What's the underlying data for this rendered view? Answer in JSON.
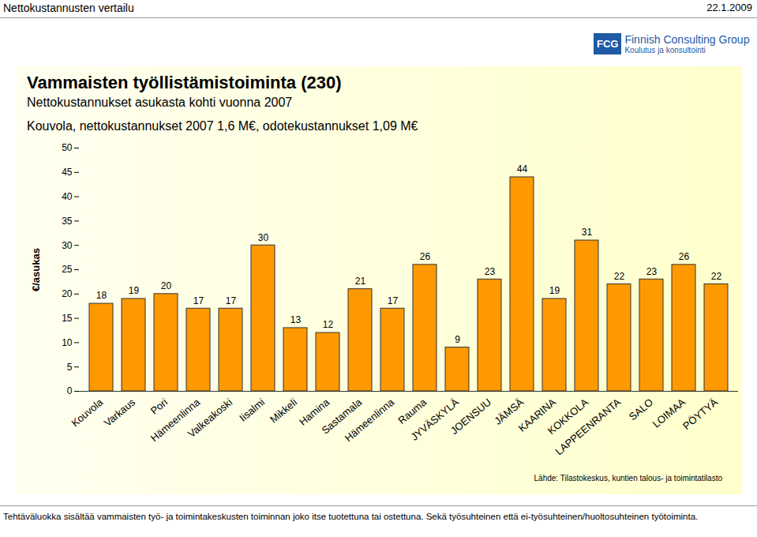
{
  "page": {
    "header_left": "Nettokustannusten vertailu",
    "header_right": "22.1.2009",
    "logo": [
      "FCG",
      "Finnish Consulting Group",
      "Koulutus ja konsultointi"
    ],
    "source": "Lähde: Tilastokeskus, kuntien talous- ja toimintatilasto",
    "footnote": "Tehtäväluokka sisältää vammaisten työ- ja toimintakeskusten toiminnan joko itse tuotettuna tai ostettuna. Sekä työsuhteinen että ei-työsuhteinen/huoltosuhteinen työtoiminta."
  },
  "chart_data": {
    "type": "bar",
    "title": "Vammaisten työllistämistoiminta (230)",
    "subtitle": "Nettokustannukset asukasta kohti vuonna 2007",
    "annotations": [
      "Kouvola, nettokustannukset 2007 1,6 M€, odotekustannukset 1,09 M€"
    ],
    "y_label": "€/asukas",
    "categories": [
      "Kouvola",
      "Varkaus",
      "Pori",
      "Hämeenlinna",
      "Valkeakoski",
      "Iisalmi",
      "Mikkeli",
      "Hamina",
      "Sastamala",
      "Hämeenlinna",
      "Rauma",
      "JYVÄSKYLÄ",
      "JOENSUU",
      "JÄMSÄ",
      "KAARINA",
      "KOKKOLA",
      "LAPPEENRANTA",
      "SALO",
      "LOIMAA",
      "PÖYTYÄ"
    ],
    "values": [
      18,
      19,
      20,
      17,
      17,
      30,
      13,
      12,
      21,
      17,
      26,
      9,
      23,
      44,
      19,
      31,
      22,
      23,
      26,
      22
    ],
    "color": "#ff9900",
    "ylim": [
      0,
      50
    ],
    "yticks": [
      0,
      5,
      10,
      15,
      20,
      25,
      30,
      35,
      40,
      45,
      50
    ],
    "grid": false,
    "data_labels": true
  }
}
